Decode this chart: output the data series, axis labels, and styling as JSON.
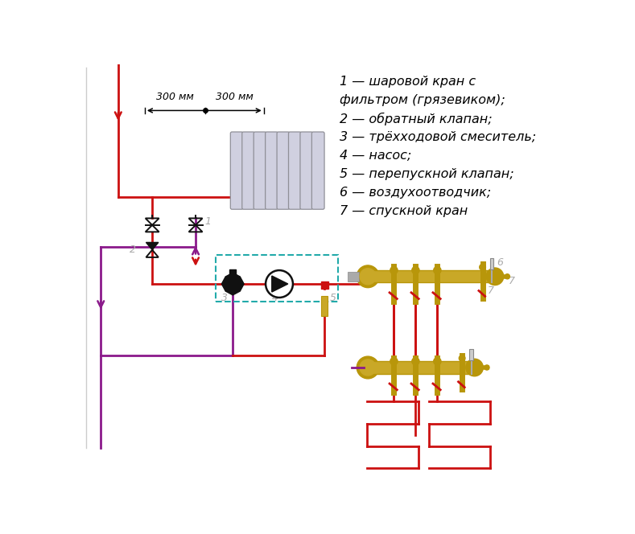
{
  "legend": [
    "1 — шаровой кран с",
    "фильтром (грязевиком);",
    "2 — обратный клапан;",
    "3 — трёхходовой смеситель;",
    "4 — насос;",
    "5 — перепускной клапан;",
    "6 — воздухоотводчик;",
    "7 — спускной кран"
  ],
  "bg": "#ffffff",
  "red": "#cc1111",
  "purple": "#8b1a8b",
  "teal": "#22aaaa",
  "gold": "#b8960a",
  "gold2": "#c9a827",
  "gray": "#aaaaaa",
  "dark": "#111111",
  "dim_text": "300 мм",
  "lw": 2.0
}
